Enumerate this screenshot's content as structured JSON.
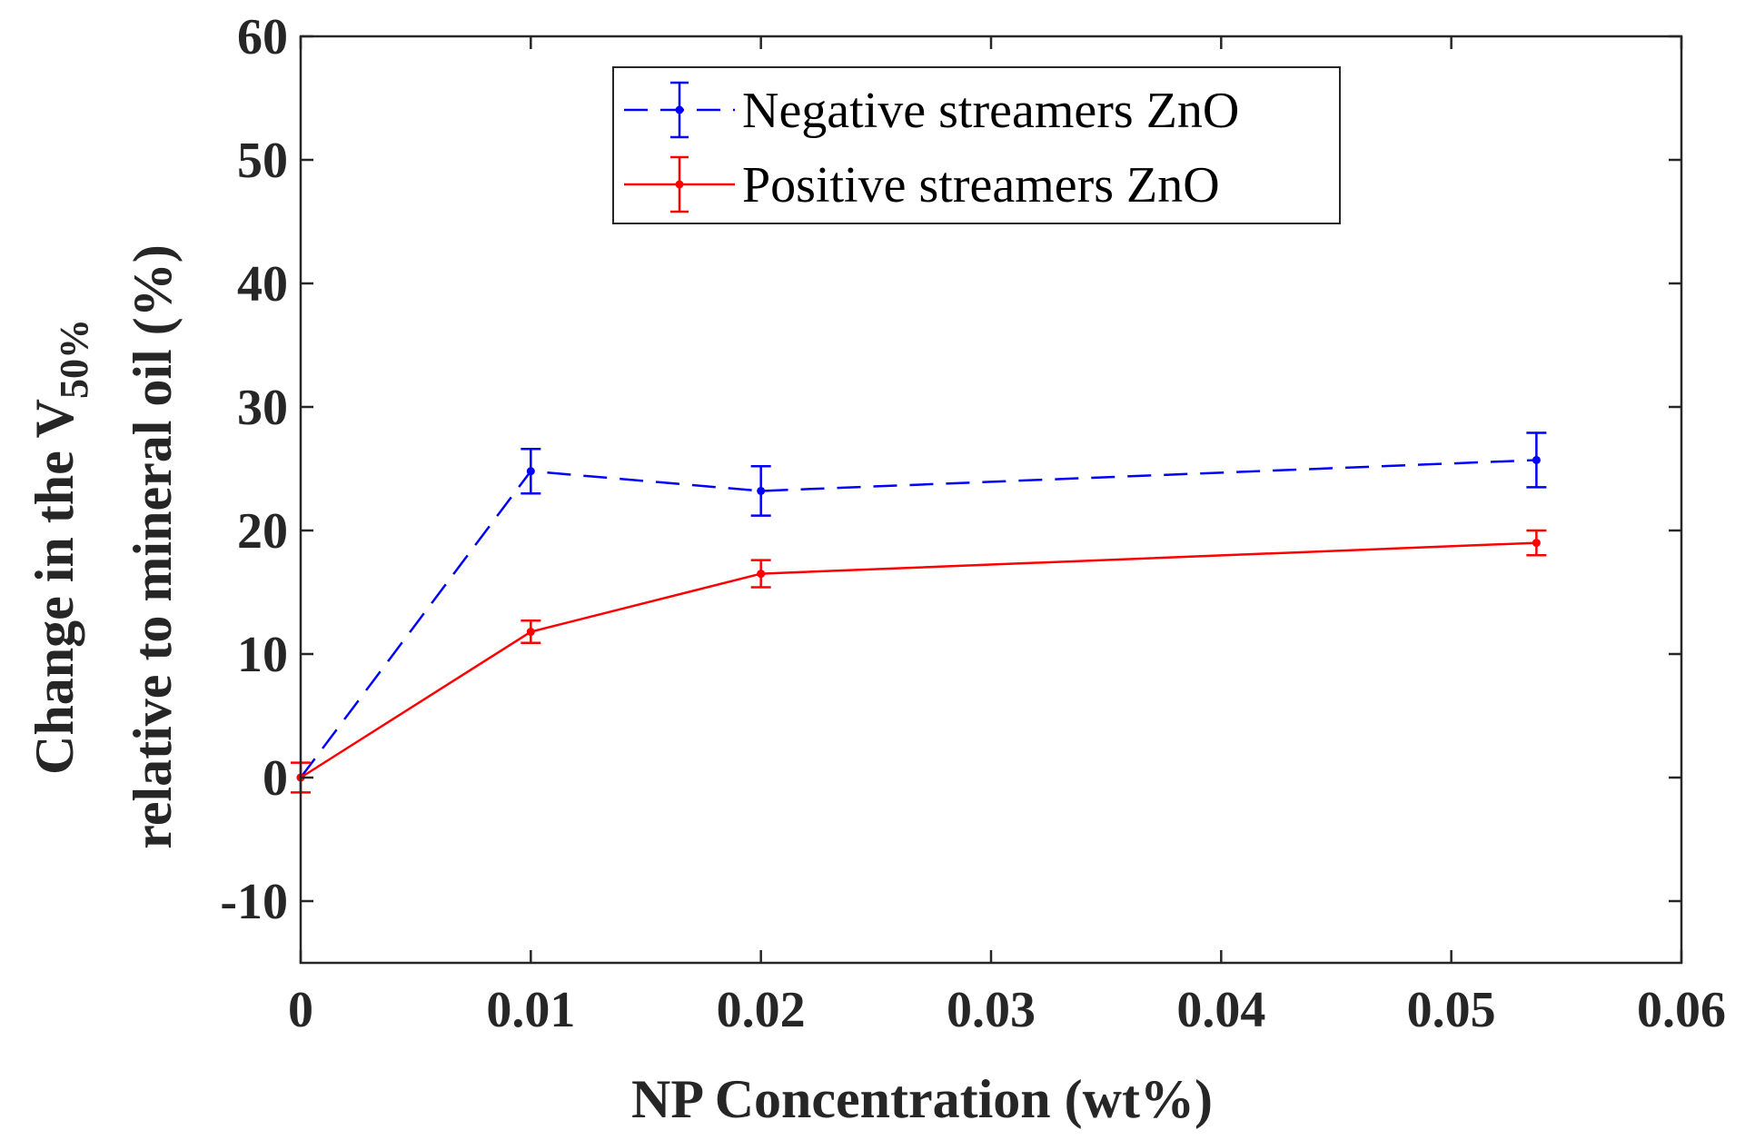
{
  "chart_data": {
    "type": "line",
    "title": "",
    "xlabel": "NP Concentration (wt%)",
    "ylabel_line1_prefix": "Change in the V",
    "ylabel_line1_subscript": "50%",
    "ylabel_line2": "relative to mineral oil (%)",
    "xlim": [
      0,
      0.06
    ],
    "ylim": [
      -15,
      60
    ],
    "xticks": [
      0,
      0.01,
      0.02,
      0.03,
      0.04,
      0.05,
      0.06
    ],
    "xtick_labels": [
      "0",
      "0.01",
      "0.02",
      "0.03",
      "0.04",
      "0.05",
      "0.06"
    ],
    "yticks": [
      -10,
      0,
      10,
      20,
      30,
      40,
      50,
      60
    ],
    "ytick_labels": [
      "-10",
      "0",
      "10",
      "20",
      "30",
      "40",
      "50",
      "60"
    ],
    "grid": false,
    "legend_position": "top-center",
    "series": [
      {
        "name": "Negative streamers ZnO",
        "color": "#0000ff",
        "line_style": "dashed",
        "x": [
          0,
          0.01,
          0.02,
          0.0537
        ],
        "y": [
          0,
          24.8,
          23.2,
          25.7
        ],
        "error": [
          0,
          1.8,
          2.0,
          2.2
        ]
      },
      {
        "name": "Positive streamers ZnO",
        "color": "#ff0000",
        "line_style": "solid",
        "x": [
          0,
          0.01,
          0.02,
          0.0537
        ],
        "y": [
          0,
          11.8,
          16.5,
          19.0
        ],
        "error": [
          1.2,
          0.9,
          1.1,
          1.0
        ]
      }
    ]
  }
}
